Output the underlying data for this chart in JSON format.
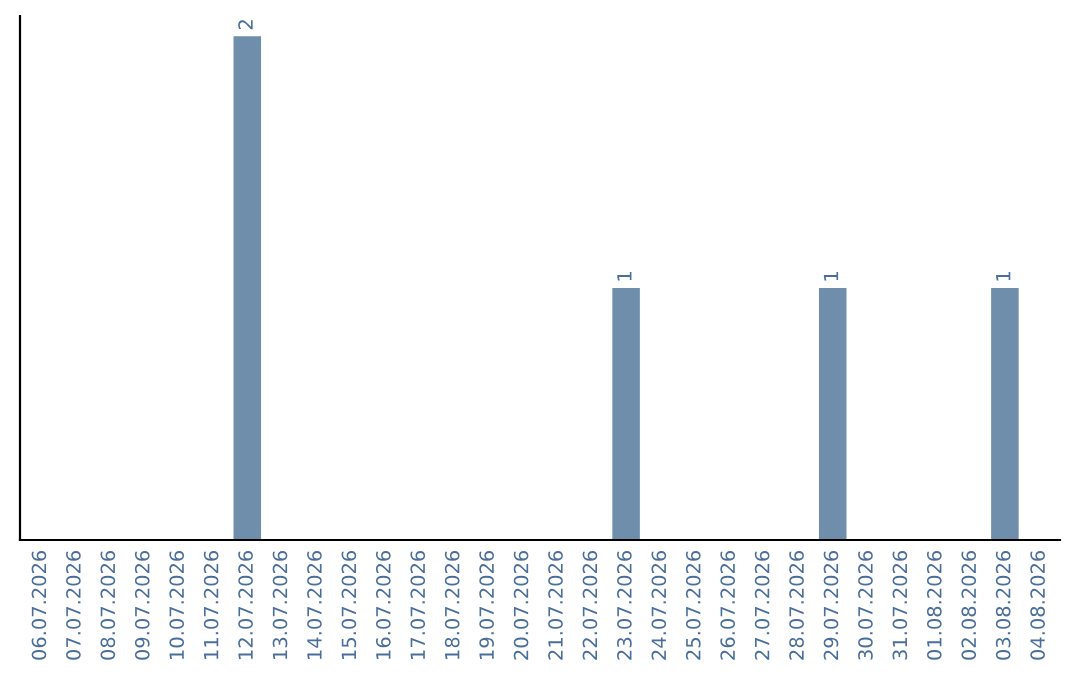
{
  "chart_data": {
    "type": "bar",
    "categories": [
      "06.07.2026",
      "07.07.2026",
      "08.07.2026",
      "09.07.2026",
      "10.07.2026",
      "11.07.2026",
      "12.07.2026",
      "13.07.2026",
      "14.07.2026",
      "15.07.2026",
      "16.07.2026",
      "17.07.2026",
      "18.07.2026",
      "19.07.2026",
      "20.07.2026",
      "21.07.2026",
      "22.07.2026",
      "23.07.2026",
      "24.07.2026",
      "25.07.2026",
      "26.07.2026",
      "27.07.2026",
      "28.07.2026",
      "29.07.2026",
      "30.07.2026",
      "31.07.2026",
      "01.08.2026",
      "02.08.2026",
      "03.08.2026",
      "04.08.2026"
    ],
    "values": [
      0,
      0,
      0,
      0,
      0,
      0,
      2,
      0,
      0,
      0,
      0,
      0,
      0,
      0,
      0,
      0,
      0,
      1,
      0,
      0,
      0,
      0,
      0,
      1,
      0,
      0,
      0,
      0,
      1,
      0
    ],
    "value_labels": [
      null,
      null,
      null,
      null,
      null,
      null,
      "2",
      null,
      null,
      null,
      null,
      null,
      null,
      null,
      null,
      null,
      null,
      "1",
      null,
      null,
      null,
      null,
      null,
      "1",
      null,
      null,
      null,
      null,
      "1",
      null
    ],
    "color": "#6e8eac",
    "tick_labels": "x",
    "grid": false,
    "legend": false
  }
}
